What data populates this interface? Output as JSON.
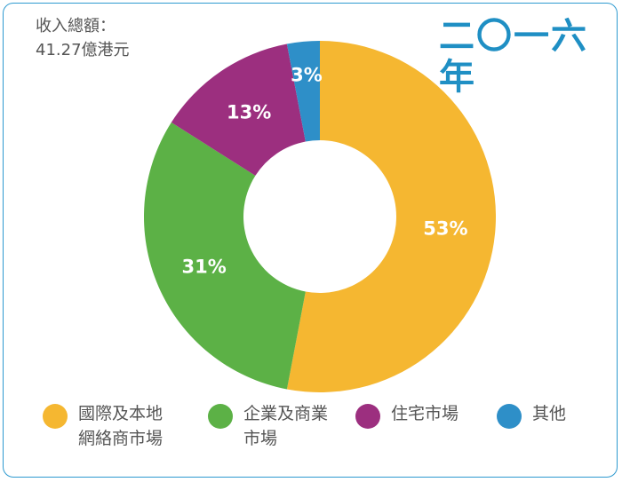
{
  "header": {
    "revenue_label": "收入總額：",
    "revenue_value": "41.27億港元",
    "year": "二〇一六年"
  },
  "colors": {
    "frame": "#2e9ad0",
    "year_text": "#1f8fc4",
    "body_text": "#555555"
  },
  "chart_data": {
    "type": "pie",
    "donut": true,
    "title": "二〇一六年",
    "start": "top",
    "direction": "clockwise",
    "legend_position": "bottom",
    "slices": [
      {
        "label": "國際及本地網絡商市場",
        "legend_text": "國際及本地\n網絡商市場",
        "value": 53,
        "display": "53%",
        "color": "#f5b731"
      },
      {
        "label": "企業及商業市場",
        "legend_text": "企業及商業\n市場",
        "value": 31,
        "display": "31%",
        "color": "#5cb146"
      },
      {
        "label": "住宅市場",
        "legend_text": "住宅市場",
        "value": 13,
        "display": "13%",
        "color": "#9c2f7f"
      },
      {
        "label": "其他",
        "legend_text": "其他",
        "value": 3,
        "display": "3%",
        "color": "#2e8fc8"
      }
    ]
  }
}
